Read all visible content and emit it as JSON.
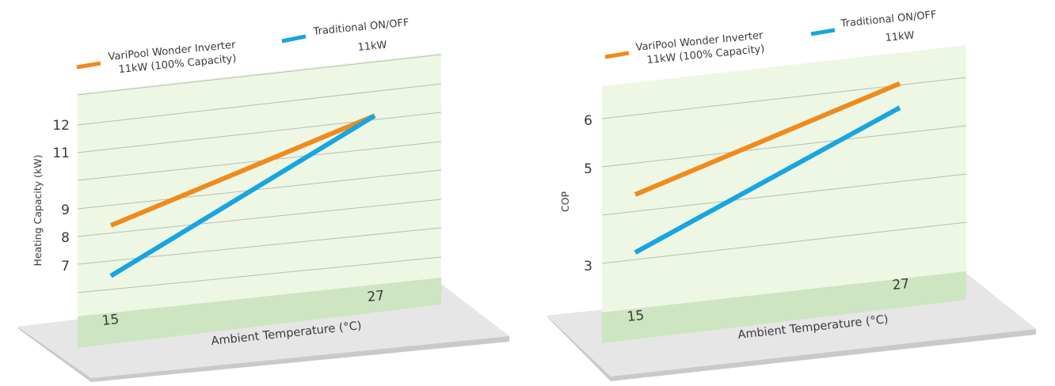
{
  "colors": {
    "variPool": "#f08a1c",
    "traditional": "#18a5e0",
    "panel": "#eef7e4",
    "panelStrip": "#cde5c1",
    "grid": "#b7bfb5",
    "base": "#e6e6e6",
    "baseEdge": "#c9c9c9",
    "text": "#3a3a3a"
  },
  "legend": {
    "variPool": {
      "line1": "VariPool Wonder Inverter",
      "line2": "11kW (100% Capacity)"
    },
    "traditional": {
      "line1": "Traditional ON/OFF",
      "line2": "11kW"
    }
  },
  "chart_data": [
    {
      "type": "line",
      "title": "",
      "xlabel": "Ambient Temperature (°C)",
      "ylabel": "Heating Capacity (kW)",
      "x_ticks": [
        "15",
        "27"
      ],
      "y_ticks": [
        "7",
        "8",
        "9",
        "11",
        "12"
      ],
      "grid": true,
      "legend_position": "top",
      "series": [
        {
          "name": "VariPool Wonder Inverter 11kW (100% Capacity)",
          "color": "#f08a1c",
          "x": [
            15,
            27
          ],
          "y": [
            8.4,
            12.2
          ]
        },
        {
          "name": "Traditional ON/OFF 11kW",
          "color": "#18a5e0",
          "x": [
            15,
            27
          ],
          "y": [
            6.6,
            12.2
          ]
        }
      ]
    },
    {
      "type": "line",
      "title": "",
      "xlabel": "Ambient Temperature (°C)",
      "ylabel": "COP",
      "x_ticks": [
        "15",
        "27"
      ],
      "y_ticks": [
        "3",
        "5",
        "6"
      ],
      "grid": true,
      "legend_position": "top",
      "series": [
        {
          "name": "VariPool Wonder Inverter 11kW (100% Capacity)",
          "color": "#f08a1c",
          "x": [
            15,
            27
          ],
          "y": [
            4.4,
            6.5
          ]
        },
        {
          "name": "Traditional ON/OFF 11kW",
          "color": "#18a5e0",
          "x": [
            15,
            27
          ],
          "y": [
            3.2,
            6.0
          ]
        }
      ]
    }
  ]
}
